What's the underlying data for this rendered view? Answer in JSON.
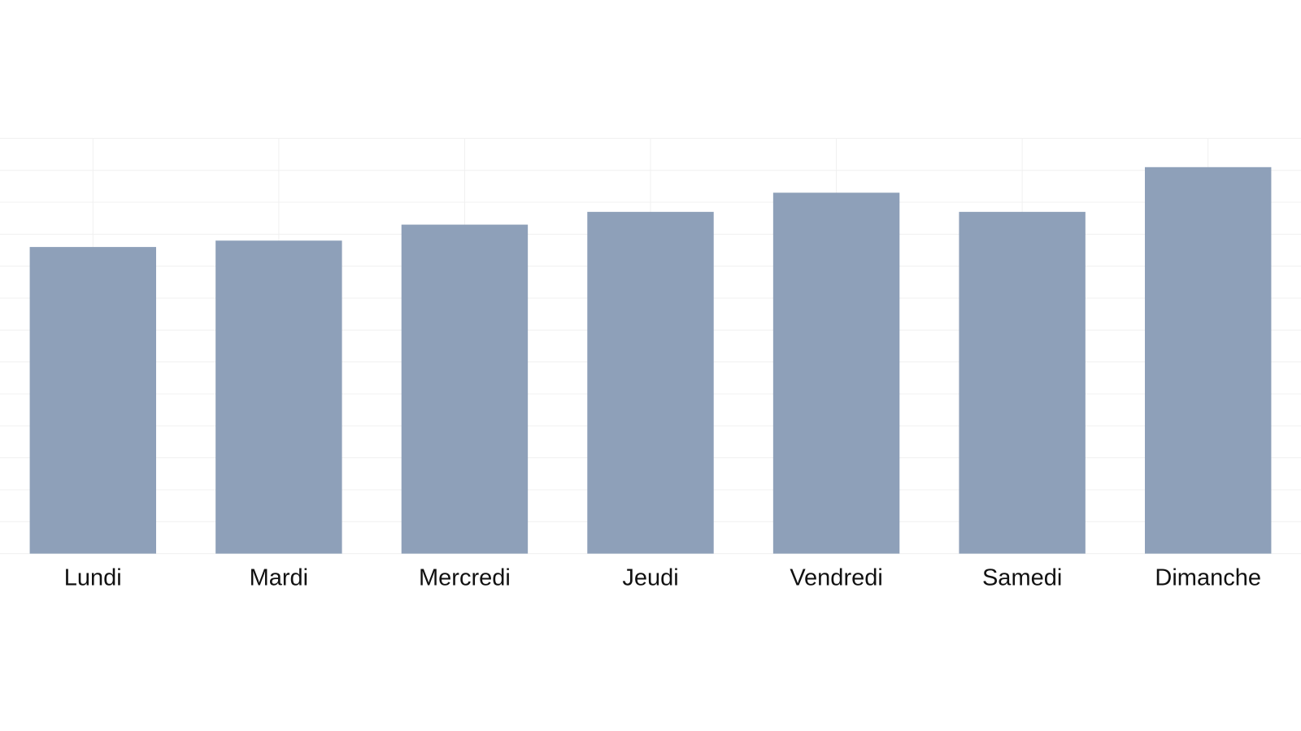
{
  "chart_data": {
    "type": "bar",
    "categories": [
      "Lundi",
      "Mardi",
      "Mercredi",
      "Jeudi",
      "Vendredi",
      "Samedi",
      "Dimanche"
    ],
    "values": [
      9.6,
      9.8,
      10.3,
      10.7,
      11.3,
      10.7,
      12.1
    ],
    "color": "#8ea0b9",
    "ylim": [
      0,
      13
    ],
    "yticks": [
      0,
      1,
      2,
      3,
      4,
      5,
      6,
      7,
      8,
      9,
      10,
      11,
      12,
      13
    ],
    "grid": true
  }
}
